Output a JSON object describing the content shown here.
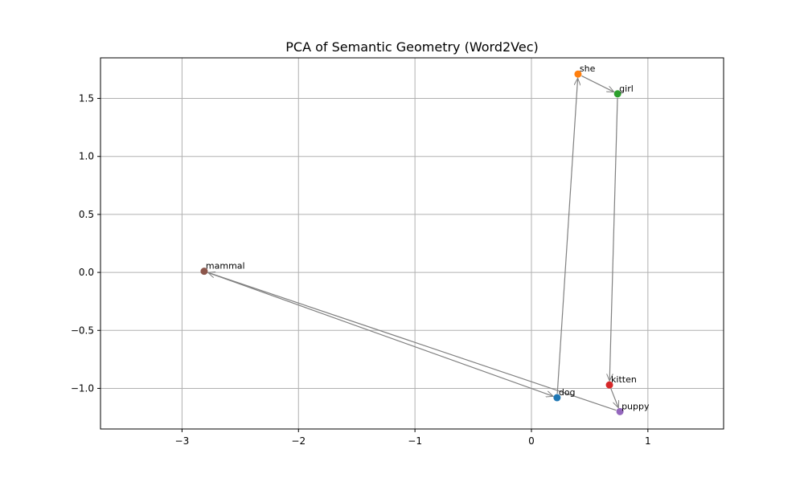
{
  "chart_data": {
    "type": "scatter",
    "title": "PCA of Semantic Geometry (Word2Vec)",
    "xlabel": "",
    "ylabel": "",
    "xlim": [
      -3.7,
      1.65
    ],
    "ylim": [
      -1.35,
      1.85
    ],
    "xticks": [
      -3,
      -2,
      -1,
      0,
      1
    ],
    "xtick_labels": [
      "−3",
      "−2",
      "−1",
      "0",
      "1"
    ],
    "yticks": [
      -1.0,
      -0.5,
      0.0,
      0.5,
      1.0,
      1.5
    ],
    "ytick_labels": [
      "−1.0",
      "−0.5",
      "0.0",
      "0.5",
      "1.0",
      "1.5"
    ],
    "grid": true,
    "points": [
      {
        "label": "dog",
        "x": 0.22,
        "y": -1.08,
        "color": "#1f77b4"
      },
      {
        "label": "she",
        "x": 0.4,
        "y": 1.71,
        "color": "#ff7f0e"
      },
      {
        "label": "girl",
        "x": 0.74,
        "y": 1.54,
        "color": "#2ca02c"
      },
      {
        "label": "kitten",
        "x": 0.67,
        "y": -0.97,
        "color": "#d62728"
      },
      {
        "label": "puppy",
        "x": 0.76,
        "y": -1.2,
        "color": "#9467bd"
      },
      {
        "label": "mammal",
        "x": -2.81,
        "y": 0.01,
        "color": "#8c564b"
      }
    ],
    "arrows": [
      {
        "from": "dog",
        "to": "she"
      },
      {
        "from": "she",
        "to": "girl"
      },
      {
        "from": "girl",
        "to": "kitten"
      },
      {
        "from": "kitten",
        "to": "puppy"
      },
      {
        "from": "puppy",
        "to": "mammal"
      },
      {
        "from": "mammal",
        "to": "dog"
      }
    ],
    "arrow_color": "#808080",
    "grid_color": "#b0b0b0"
  }
}
